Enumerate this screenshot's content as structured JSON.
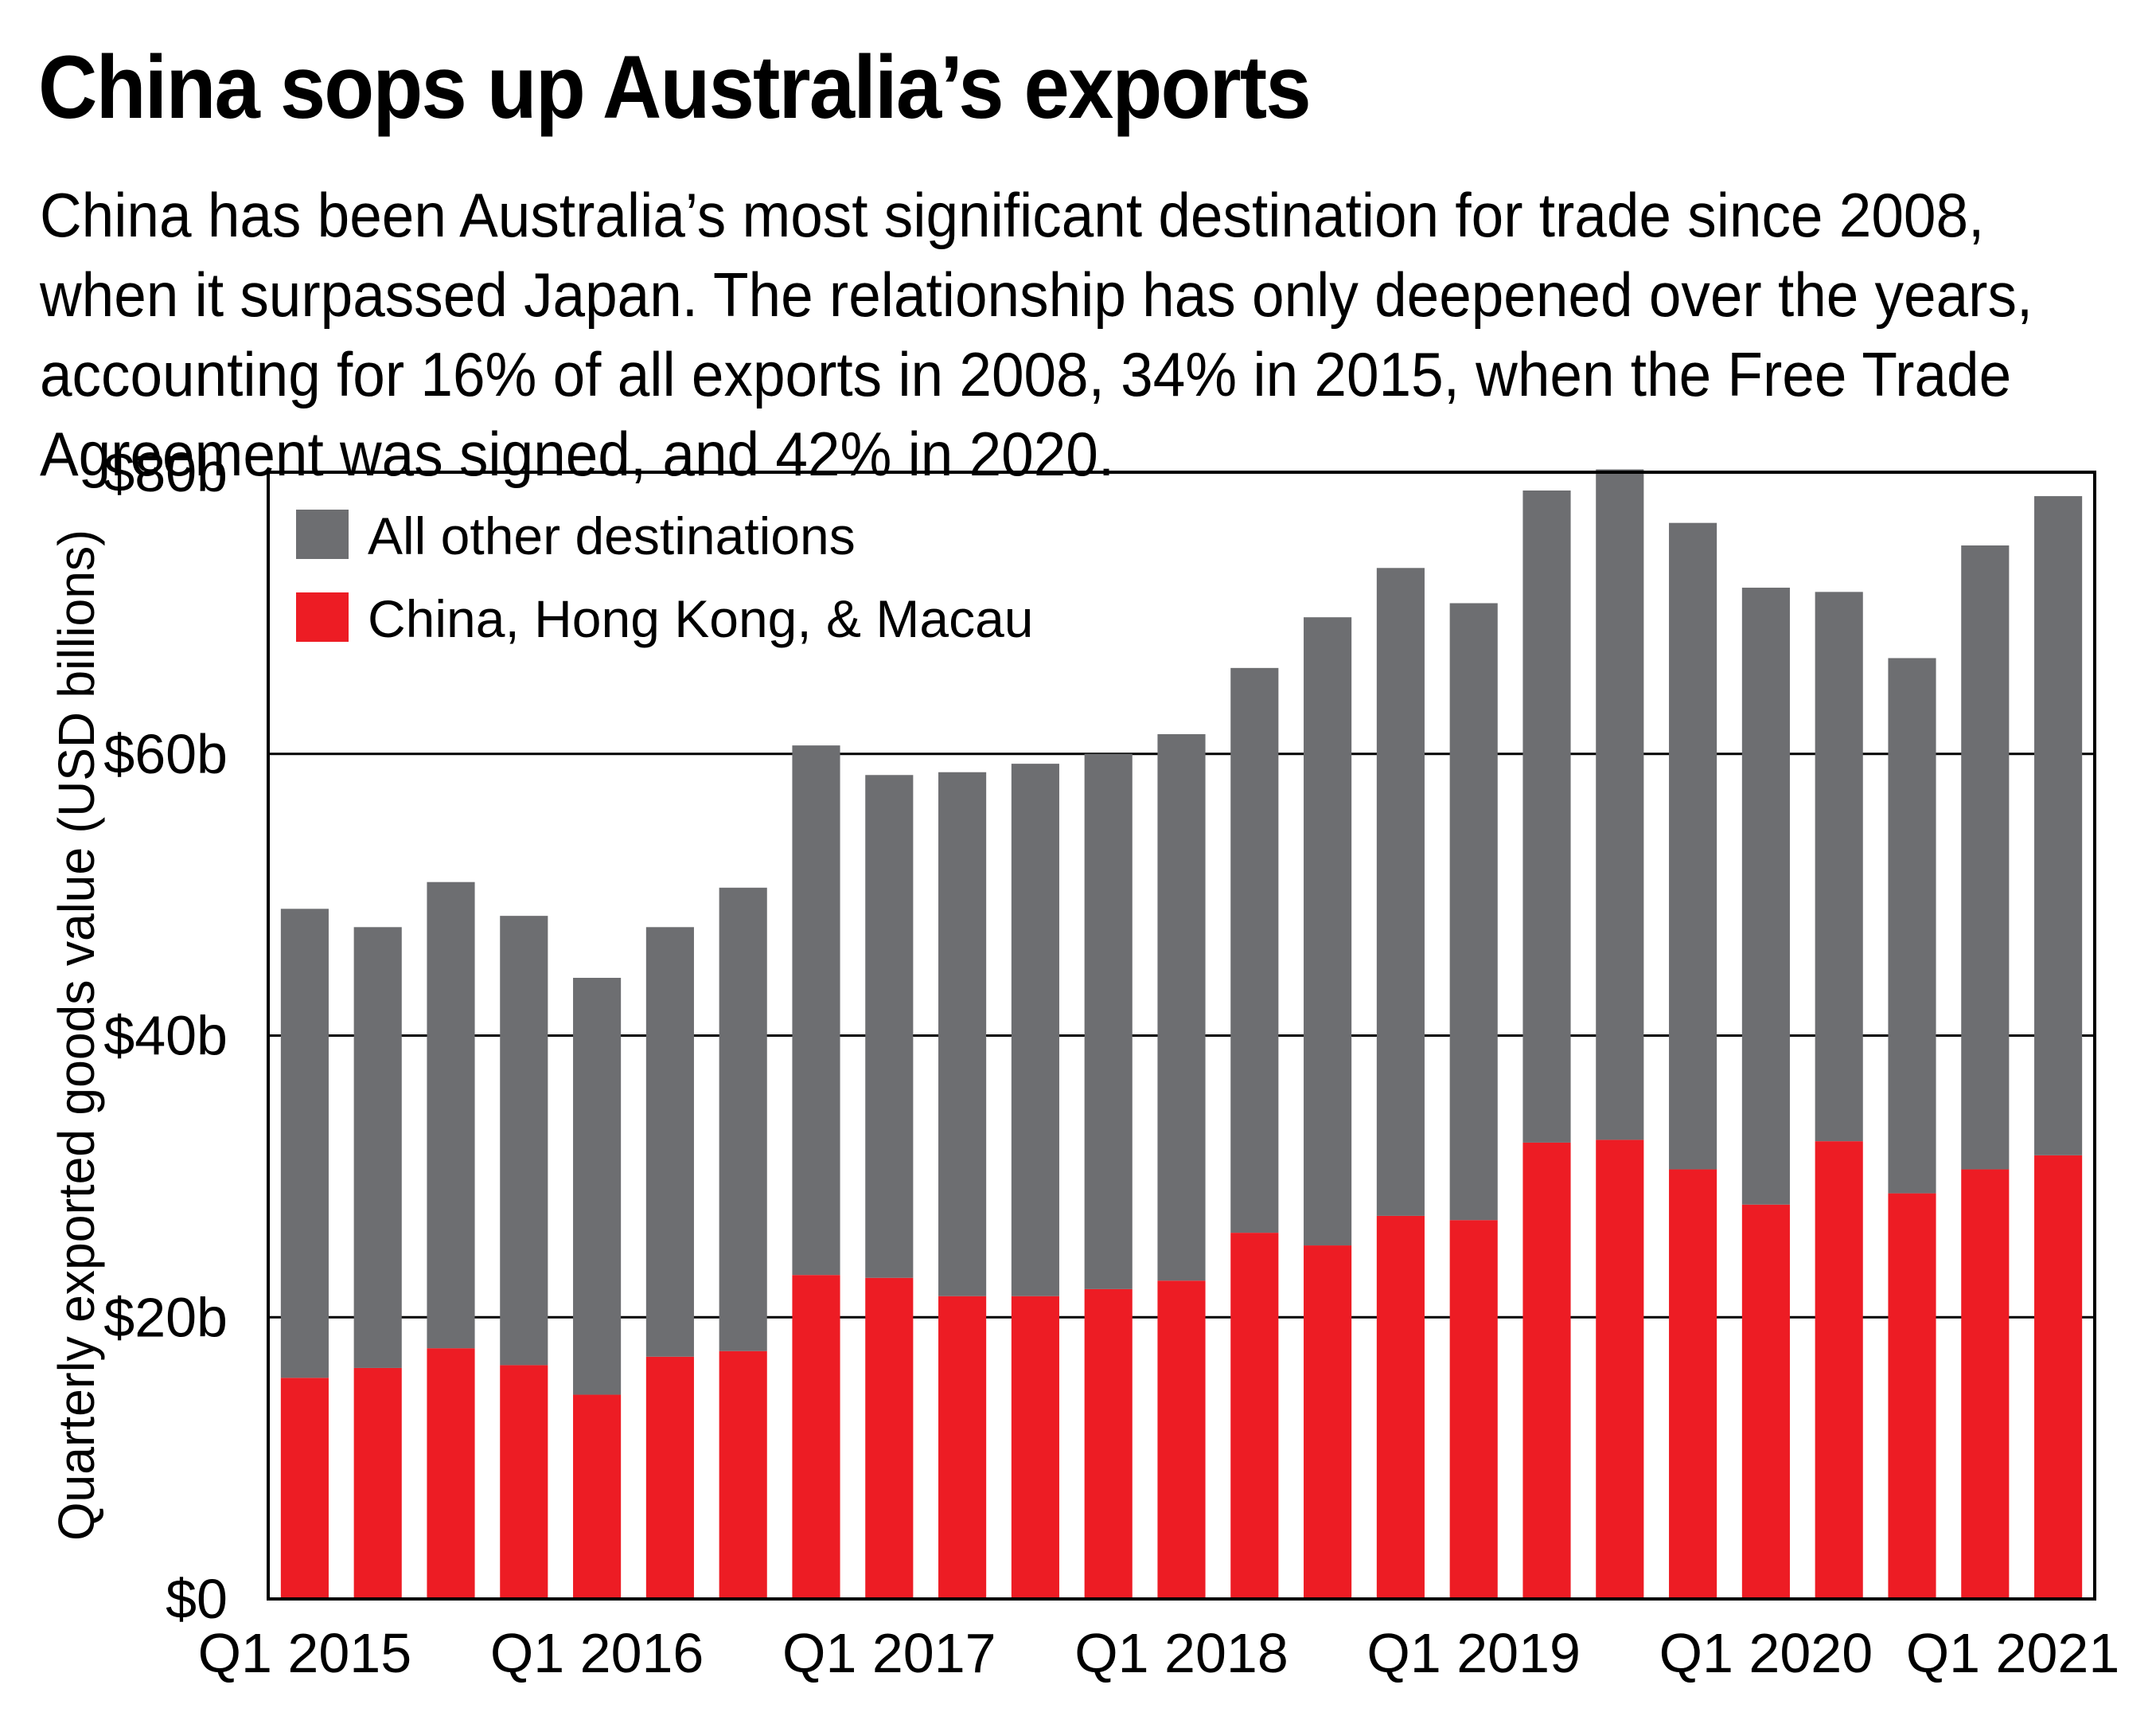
{
  "chart_data": {
    "type": "bar",
    "stacked": true,
    "title": "China sops up Australia’s exports",
    "subtitle": "China has been Australia’s most significant destination for trade since 2008, when it surpassed Japan. The relationship has only deepened over the years, accounting for 16% of all exports in 2008, 34% in 2015, when the Free Trade Agreement was signed, and 42% in 2020.",
    "xlabel": "",
    "ylabel": "Quarterly exported goods value (USD billions)",
    "ylim": [
      0,
      80
    ],
    "grid": true,
    "legend_position": "top-left",
    "y_ticks": [
      {
        "value": 0,
        "label": "$0"
      },
      {
        "value": 20,
        "label": "$20b"
      },
      {
        "value": 40,
        "label": "$40b"
      },
      {
        "value": 60,
        "label": "$60b"
      },
      {
        "value": 80,
        "label": "$80b"
      }
    ],
    "x_ticks": [
      {
        "index": 0,
        "label": "Q1 2015"
      },
      {
        "index": 4,
        "label": "Q1 2016"
      },
      {
        "index": 8,
        "label": "Q1 2017"
      },
      {
        "index": 12,
        "label": "Q1 2018"
      },
      {
        "index": 16,
        "label": "Q1 2019"
      },
      {
        "index": 20,
        "label": "Q1 2020"
      },
      {
        "index": 24,
        "label": "Q1 2021"
      }
    ],
    "categories": [
      "Q1 2015",
      "Q2 2015",
      "Q3 2015",
      "Q4 2015",
      "Q1 2016",
      "Q2 2016",
      "Q3 2016",
      "Q4 2016",
      "Q1 2017",
      "Q2 2017",
      "Q3 2017",
      "Q4 2017",
      "Q1 2018",
      "Q2 2018",
      "Q3 2018",
      "Q4 2018",
      "Q1 2019",
      "Q2 2019",
      "Q3 2019",
      "Q4 2019",
      "Q1 2020",
      "Q2 2020",
      "Q3 2020",
      "Q4 2020",
      "Q1 2021"
    ],
    "series": [
      {
        "name": "China, Hong Kong, & Macau",
        "color": "#ed1c24",
        "values": [
          15.7,
          16.4,
          17.8,
          16.6,
          14.5,
          17.2,
          17.6,
          23.0,
          22.8,
          21.5,
          21.5,
          22.0,
          22.6,
          26.0,
          25.1,
          27.2,
          26.9,
          32.4,
          32.6,
          30.5,
          28.0,
          32.5,
          28.8,
          30.5,
          31.5
        ]
      },
      {
        "name": "All other destinations",
        "color": "#6d6e71",
        "values": [
          33.3,
          31.3,
          33.1,
          31.9,
          29.6,
          30.5,
          32.9,
          37.6,
          35.7,
          37.2,
          37.8,
          38.0,
          38.8,
          40.1,
          44.6,
          46.0,
          43.8,
          46.3,
          47.6,
          45.9,
          43.8,
          39.0,
          38.0,
          44.3,
          46.8
        ]
      }
    ]
  }
}
